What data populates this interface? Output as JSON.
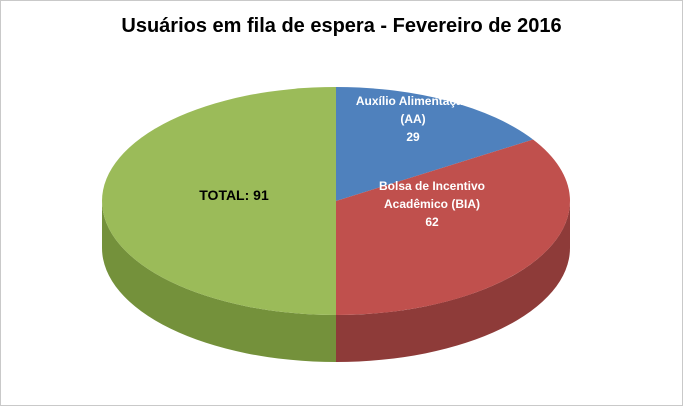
{
  "chart_data": {
    "type": "pie",
    "style": "3d",
    "title": "Usuários em fila de espera - Fevereiro de 2016",
    "direction": "clockwise",
    "start_angle_deg": 0,
    "background": "#FFFFFF",
    "border_color": "#C9C9C9",
    "slices": [
      {
        "name": "Auxílio Alimentação (AA)",
        "value": 29,
        "color": "#4F81BD",
        "side_color": "#35577F",
        "label_color": "#FFFFFF",
        "label_lines": [
          "Auxílio Alimentação",
          "(AA)",
          "29"
        ]
      },
      {
        "name": "Bolsa de Incentivo Acadêmico (BIA)",
        "value": 62,
        "color": "#C0504D",
        "side_color": "#8E3B39",
        "label_color": "#FFFFFF",
        "label_lines": [
          "Bolsa de Incentivo",
          "Acadêmico (BIA)",
          "62"
        ]
      },
      {
        "name": "TOTAL",
        "value": 91,
        "color": "#9BBB59",
        "side_color": "#74913B",
        "label_color": "#000000",
        "label_lines": [
          "TOTAL: 91"
        ]
      }
    ]
  }
}
